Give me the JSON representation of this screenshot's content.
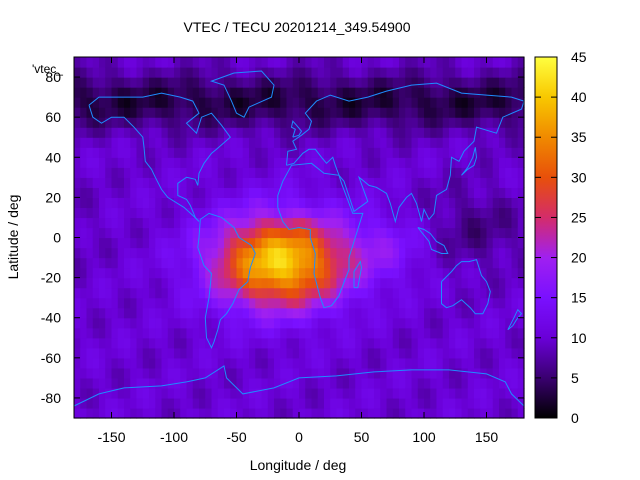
{
  "chart_data": {
    "type": "heatmap",
    "title": "VTEC / TECU 20201214_349.54900",
    "series_label": "'vtec_",
    "xlabel": "Longitude / deg",
    "ylabel": "Latitude / deg",
    "xlim": [
      -180,
      180
    ],
    "ylim": [
      -90,
      90
    ],
    "x_ticks": [
      -150,
      -100,
      -50,
      0,
      50,
      100,
      150
    ],
    "y_ticks": [
      -80,
      -60,
      -40,
      -20,
      0,
      20,
      40,
      60,
      80
    ],
    "colorbar": {
      "min": 0,
      "max": 45,
      "ticks": [
        0,
        5,
        10,
        15,
        20,
        25,
        30,
        35,
        40,
        45
      ],
      "colors": [
        "#000000",
        "#3a0070",
        "#6a00d8",
        "#7a10ff",
        "#a020f0",
        "#d42c6a",
        "#e8500a",
        "#f08a00",
        "#f8c800",
        "#ffff40"
      ]
    },
    "peak": {
      "lon": -15,
      "lat": -12,
      "value": 43
    },
    "coastline_color": "#1e8cff"
  }
}
